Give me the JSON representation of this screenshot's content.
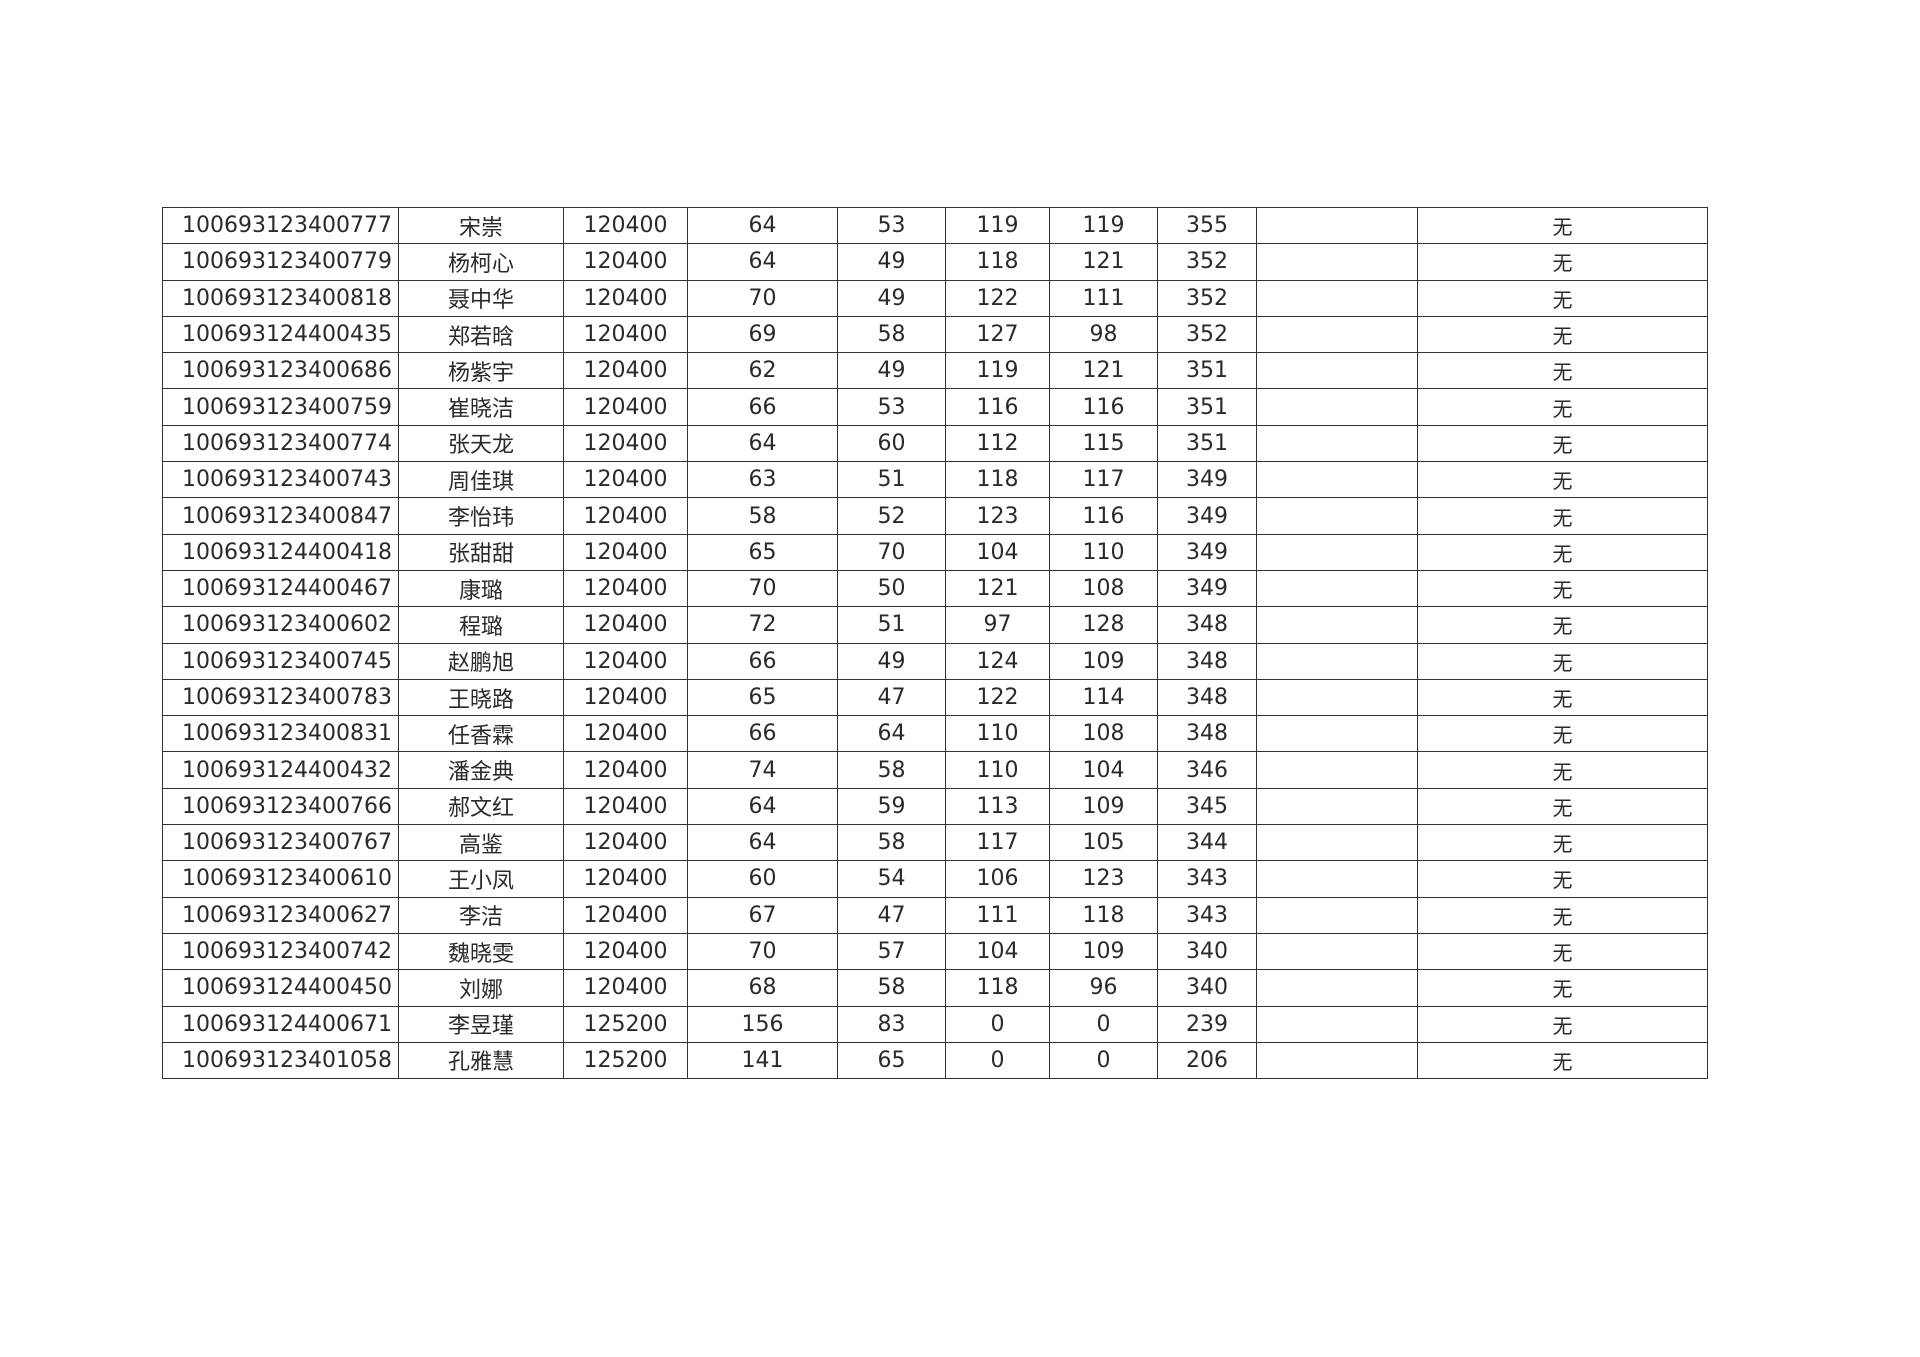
{
  "rows": [
    {
      "id": "100693123400777",
      "name": "宋崇",
      "code": "120400",
      "s1": "64",
      "s2": "53",
      "s3": "119",
      "s4": "119",
      "total": "355",
      "blank": "",
      "note": "无"
    },
    {
      "id": "100693123400779",
      "name": "杨柯心",
      "code": "120400",
      "s1": "64",
      "s2": "49",
      "s3": "118",
      "s4": "121",
      "total": "352",
      "blank": "",
      "note": "无"
    },
    {
      "id": "100693123400818",
      "name": "聂中华",
      "code": "120400",
      "s1": "70",
      "s2": "49",
      "s3": "122",
      "s4": "111",
      "total": "352",
      "blank": "",
      "note": "无"
    },
    {
      "id": "100693124400435",
      "name": "郑若晗",
      "code": "120400",
      "s1": "69",
      "s2": "58",
      "s3": "127",
      "s4": "98",
      "total": "352",
      "blank": "",
      "note": "无"
    },
    {
      "id": "100693123400686",
      "name": "杨紫宇",
      "code": "120400",
      "s1": "62",
      "s2": "49",
      "s3": "119",
      "s4": "121",
      "total": "351",
      "blank": "",
      "note": "无"
    },
    {
      "id": "100693123400759",
      "name": "崔晓洁",
      "code": "120400",
      "s1": "66",
      "s2": "53",
      "s3": "116",
      "s4": "116",
      "total": "351",
      "blank": "",
      "note": "无"
    },
    {
      "id": "100693123400774",
      "name": "张天龙",
      "code": "120400",
      "s1": "64",
      "s2": "60",
      "s3": "112",
      "s4": "115",
      "total": "351",
      "blank": "",
      "note": "无"
    },
    {
      "id": "100693123400743",
      "name": "周佳琪",
      "code": "120400",
      "s1": "63",
      "s2": "51",
      "s3": "118",
      "s4": "117",
      "total": "349",
      "blank": "",
      "note": "无"
    },
    {
      "id": "100693123400847",
      "name": "李怡玮",
      "code": "120400",
      "s1": "58",
      "s2": "52",
      "s3": "123",
      "s4": "116",
      "total": "349",
      "blank": "",
      "note": "无"
    },
    {
      "id": "100693124400418",
      "name": "张甜甜",
      "code": "120400",
      "s1": "65",
      "s2": "70",
      "s3": "104",
      "s4": "110",
      "total": "349",
      "blank": "",
      "note": "无"
    },
    {
      "id": "100693124400467",
      "name": "康璐",
      "code": "120400",
      "s1": "70",
      "s2": "50",
      "s3": "121",
      "s4": "108",
      "total": "349",
      "blank": "",
      "note": "无"
    },
    {
      "id": "100693123400602",
      "name": "程璐",
      "code": "120400",
      "s1": "72",
      "s2": "51",
      "s3": "97",
      "s4": "128",
      "total": "348",
      "blank": "",
      "note": "无"
    },
    {
      "id": "100693123400745",
      "name": "赵鹏旭",
      "code": "120400",
      "s1": "66",
      "s2": "49",
      "s3": "124",
      "s4": "109",
      "total": "348",
      "blank": "",
      "note": "无"
    },
    {
      "id": "100693123400783",
      "name": "王晓路",
      "code": "120400",
      "s1": "65",
      "s2": "47",
      "s3": "122",
      "s4": "114",
      "total": "348",
      "blank": "",
      "note": "无"
    },
    {
      "id": "100693123400831",
      "name": "任香霖",
      "code": "120400",
      "s1": "66",
      "s2": "64",
      "s3": "110",
      "s4": "108",
      "total": "348",
      "blank": "",
      "note": "无"
    },
    {
      "id": "100693124400432",
      "name": "潘金典",
      "code": "120400",
      "s1": "74",
      "s2": "58",
      "s3": "110",
      "s4": "104",
      "total": "346",
      "blank": "",
      "note": "无"
    },
    {
      "id": "100693123400766",
      "name": "郝文红",
      "code": "120400",
      "s1": "64",
      "s2": "59",
      "s3": "113",
      "s4": "109",
      "total": "345",
      "blank": "",
      "note": "无"
    },
    {
      "id": "100693123400767",
      "name": "高鉴",
      "code": "120400",
      "s1": "64",
      "s2": "58",
      "s3": "117",
      "s4": "105",
      "total": "344",
      "blank": "",
      "note": "无"
    },
    {
      "id": "100693123400610",
      "name": "王小凤",
      "code": "120400",
      "s1": "60",
      "s2": "54",
      "s3": "106",
      "s4": "123",
      "total": "343",
      "blank": "",
      "note": "无"
    },
    {
      "id": "100693123400627",
      "name": "李洁",
      "code": "120400",
      "s1": "67",
      "s2": "47",
      "s3": "111",
      "s4": "118",
      "total": "343",
      "blank": "",
      "note": "无"
    },
    {
      "id": "100693123400742",
      "name": "魏晓雯",
      "code": "120400",
      "s1": "70",
      "s2": "57",
      "s3": "104",
      "s4": "109",
      "total": "340",
      "blank": "",
      "note": "无"
    },
    {
      "id": "100693124400450",
      "name": "刘娜",
      "code": "120400",
      "s1": "68",
      "s2": "58",
      "s3": "118",
      "s4": "96",
      "total": "340",
      "blank": "",
      "note": "无"
    },
    {
      "id": "100693124400671",
      "name": "李昱瑾",
      "code": "125200",
      "s1": "156",
      "s2": "83",
      "s3": "0",
      "s4": "0",
      "total": "239",
      "blank": "",
      "note": "无"
    },
    {
      "id": "100693123401058",
      "name": "孔雅慧",
      "code": "125200",
      "s1": "141",
      "s2": "65",
      "s3": "0",
      "s4": "0",
      "total": "206",
      "blank": "",
      "note": "无"
    }
  ]
}
